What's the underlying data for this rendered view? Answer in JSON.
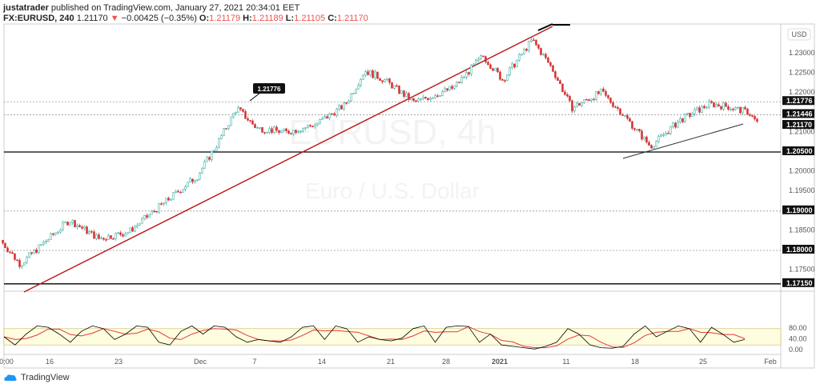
{
  "header": {
    "publisher": "justatrader",
    "published_text": "published on TradingView.com, January 27, 2021 20:34:01 EET",
    "symbol": "FX:EURUSD, 240",
    "last": "1.21170",
    "change_icon": "down-triangle-icon",
    "change": "−0.00425 (−0.35%)",
    "o_label": "O:",
    "o": "1.21179",
    "h_label": "H:",
    "h": "1.21189",
    "l_label": "L:",
    "l": "1.21105",
    "c_label": "C:",
    "c": "1.21170"
  },
  "watermark": {
    "line1": "EURUSD, 4h",
    "line2": "Euro / U.S. Dollar"
  },
  "footer": {
    "brand": "TradingView"
  },
  "colors": {
    "up": "#26a69a",
    "upfill": "#ffffff",
    "down": "#d32f2f",
    "trend": "#b71c1c",
    "k": "#000000",
    "d": "#e53935",
    "band": "#fffde0"
  },
  "chart_data": {
    "type": "candlestick",
    "currency": "USD",
    "price_ticks": [
      "1.23000",
      "1.22500",
      "1.22000",
      "1.21000",
      "1.20000",
      "1.19500",
      "1.18500",
      "1.17500"
    ],
    "price_labels": [
      "1.21776",
      "1.21446",
      "1.21170",
      "1.20500",
      "1.19000",
      "1.18000",
      "1.17150"
    ],
    "time_ticks": [
      "0:00",
      "16",
      "23",
      "Dec",
      "7",
      "14",
      "21",
      "28",
      "2021",
      "11",
      "18",
      "25",
      "Feb"
    ],
    "callout": "1.21776",
    "price_path": [
      [
        "2020-11-11",
        1.1826
      ],
      [
        "2020-11-13",
        1.1765
      ],
      [
        "2020-11-18",
        1.1877
      ],
      [
        "2020-11-21",
        1.183
      ],
      [
        "2020-11-24",
        1.1847
      ],
      [
        "2020-11-27",
        1.1908
      ],
      [
        "2020-12-01",
        1.1989
      ],
      [
        "2020-12-03",
        1.207
      ],
      [
        "2020-12-05",
        1.2162
      ],
      [
        "2020-12-07",
        1.2111
      ],
      [
        "2020-12-10",
        1.21
      ],
      [
        "2020-12-13",
        1.212
      ],
      [
        "2020-12-16",
        1.217
      ],
      [
        "2020-12-18",
        1.2257
      ],
      [
        "2020-12-20",
        1.2233
      ],
      [
        "2020-12-23",
        1.2176
      ],
      [
        "2020-12-27",
        1.2213
      ],
      [
        "2020-12-30",
        1.2294
      ],
      [
        "2021-01-01",
        1.2233
      ],
      [
        "2021-01-04",
        1.2335
      ],
      [
        "2021-01-06",
        1.2263
      ],
      [
        "2021-01-08",
        1.2162
      ],
      [
        "2021-01-11",
        1.2202
      ],
      [
        "2021-01-13",
        1.2152
      ],
      [
        "2021-01-16",
        1.2064
      ],
      [
        "2021-01-19",
        1.2131
      ],
      [
        "2021-01-22",
        1.2172
      ],
      [
        "2021-01-24",
        1.2165
      ],
      [
        "2021-01-26",
        1.215
      ],
      [
        "2021-01-27",
        1.2117
      ]
    ],
    "oscillator": {
      "ticks": [
        "80.00",
        "40.00",
        "0.00"
      ],
      "band": [
        20,
        80
      ],
      "k": [
        50,
        20,
        60,
        90,
        85,
        60,
        30,
        70,
        90,
        80,
        40,
        60,
        90,
        85,
        30,
        20,
        70,
        90,
        60,
        90,
        85,
        50,
        30,
        40,
        35,
        30,
        50,
        85,
        90,
        40,
        90,
        80,
        30,
        50,
        40,
        35,
        45,
        80,
        90,
        30,
        85,
        90,
        88,
        30,
        60,
        20,
        15,
        10,
        5,
        15,
        30,
        80,
        60,
        20,
        10,
        8,
        15,
        60,
        90,
        50,
        70,
        90,
        80,
        30,
        85,
        60,
        30,
        40
      ]
    }
  }
}
